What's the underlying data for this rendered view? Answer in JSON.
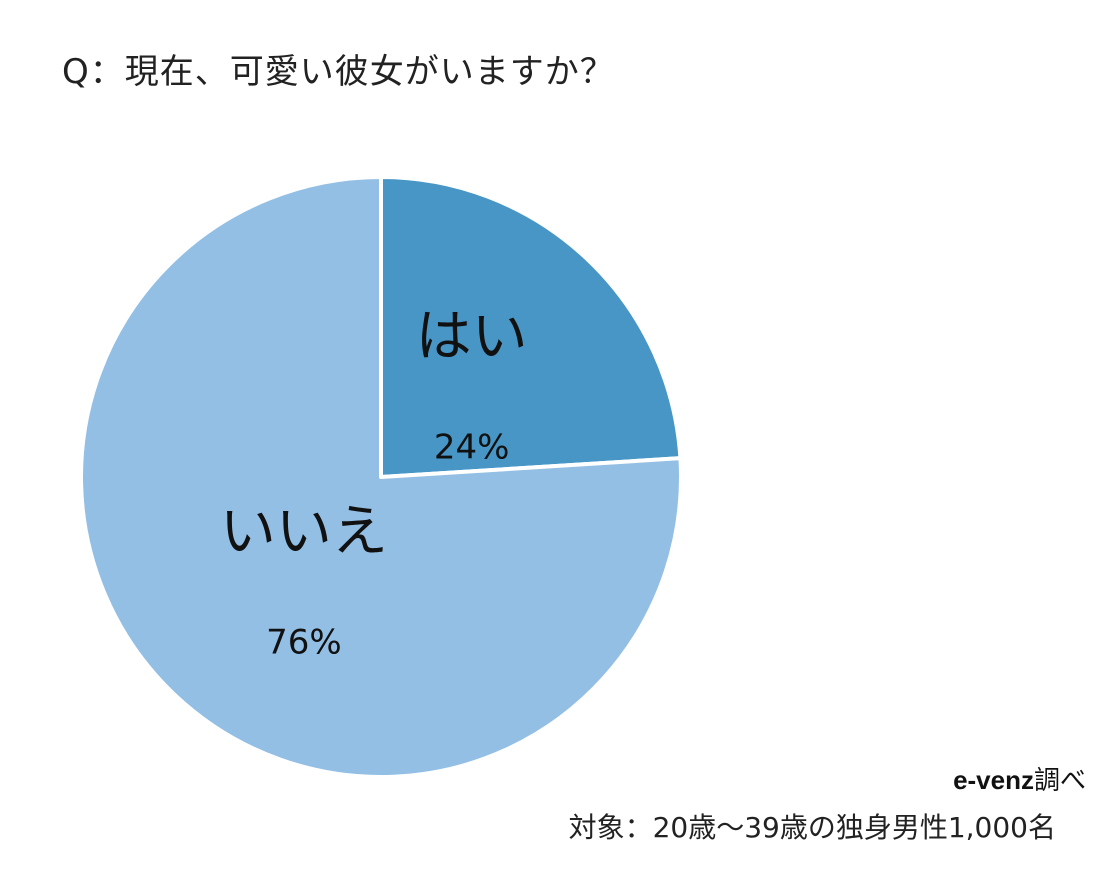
{
  "chart_data": {
    "type": "pie",
    "title": "Q：現在、可愛い彼女がいますか？",
    "slices": [
      {
        "label": "はい",
        "value": 24,
        "value_label": "24%",
        "color": "#4796c6"
      },
      {
        "label": "いいえ",
        "value": 76,
        "value_label": "76%",
        "color": "#93bfe5"
      }
    ],
    "start": "12 o'clock",
    "direction": "clockwise",
    "legend": "none"
  },
  "source": {
    "brand": "e-venz",
    "suffix": "調べ"
  },
  "target_text": "対象：20歳〜39歳の独身男性1,000名"
}
